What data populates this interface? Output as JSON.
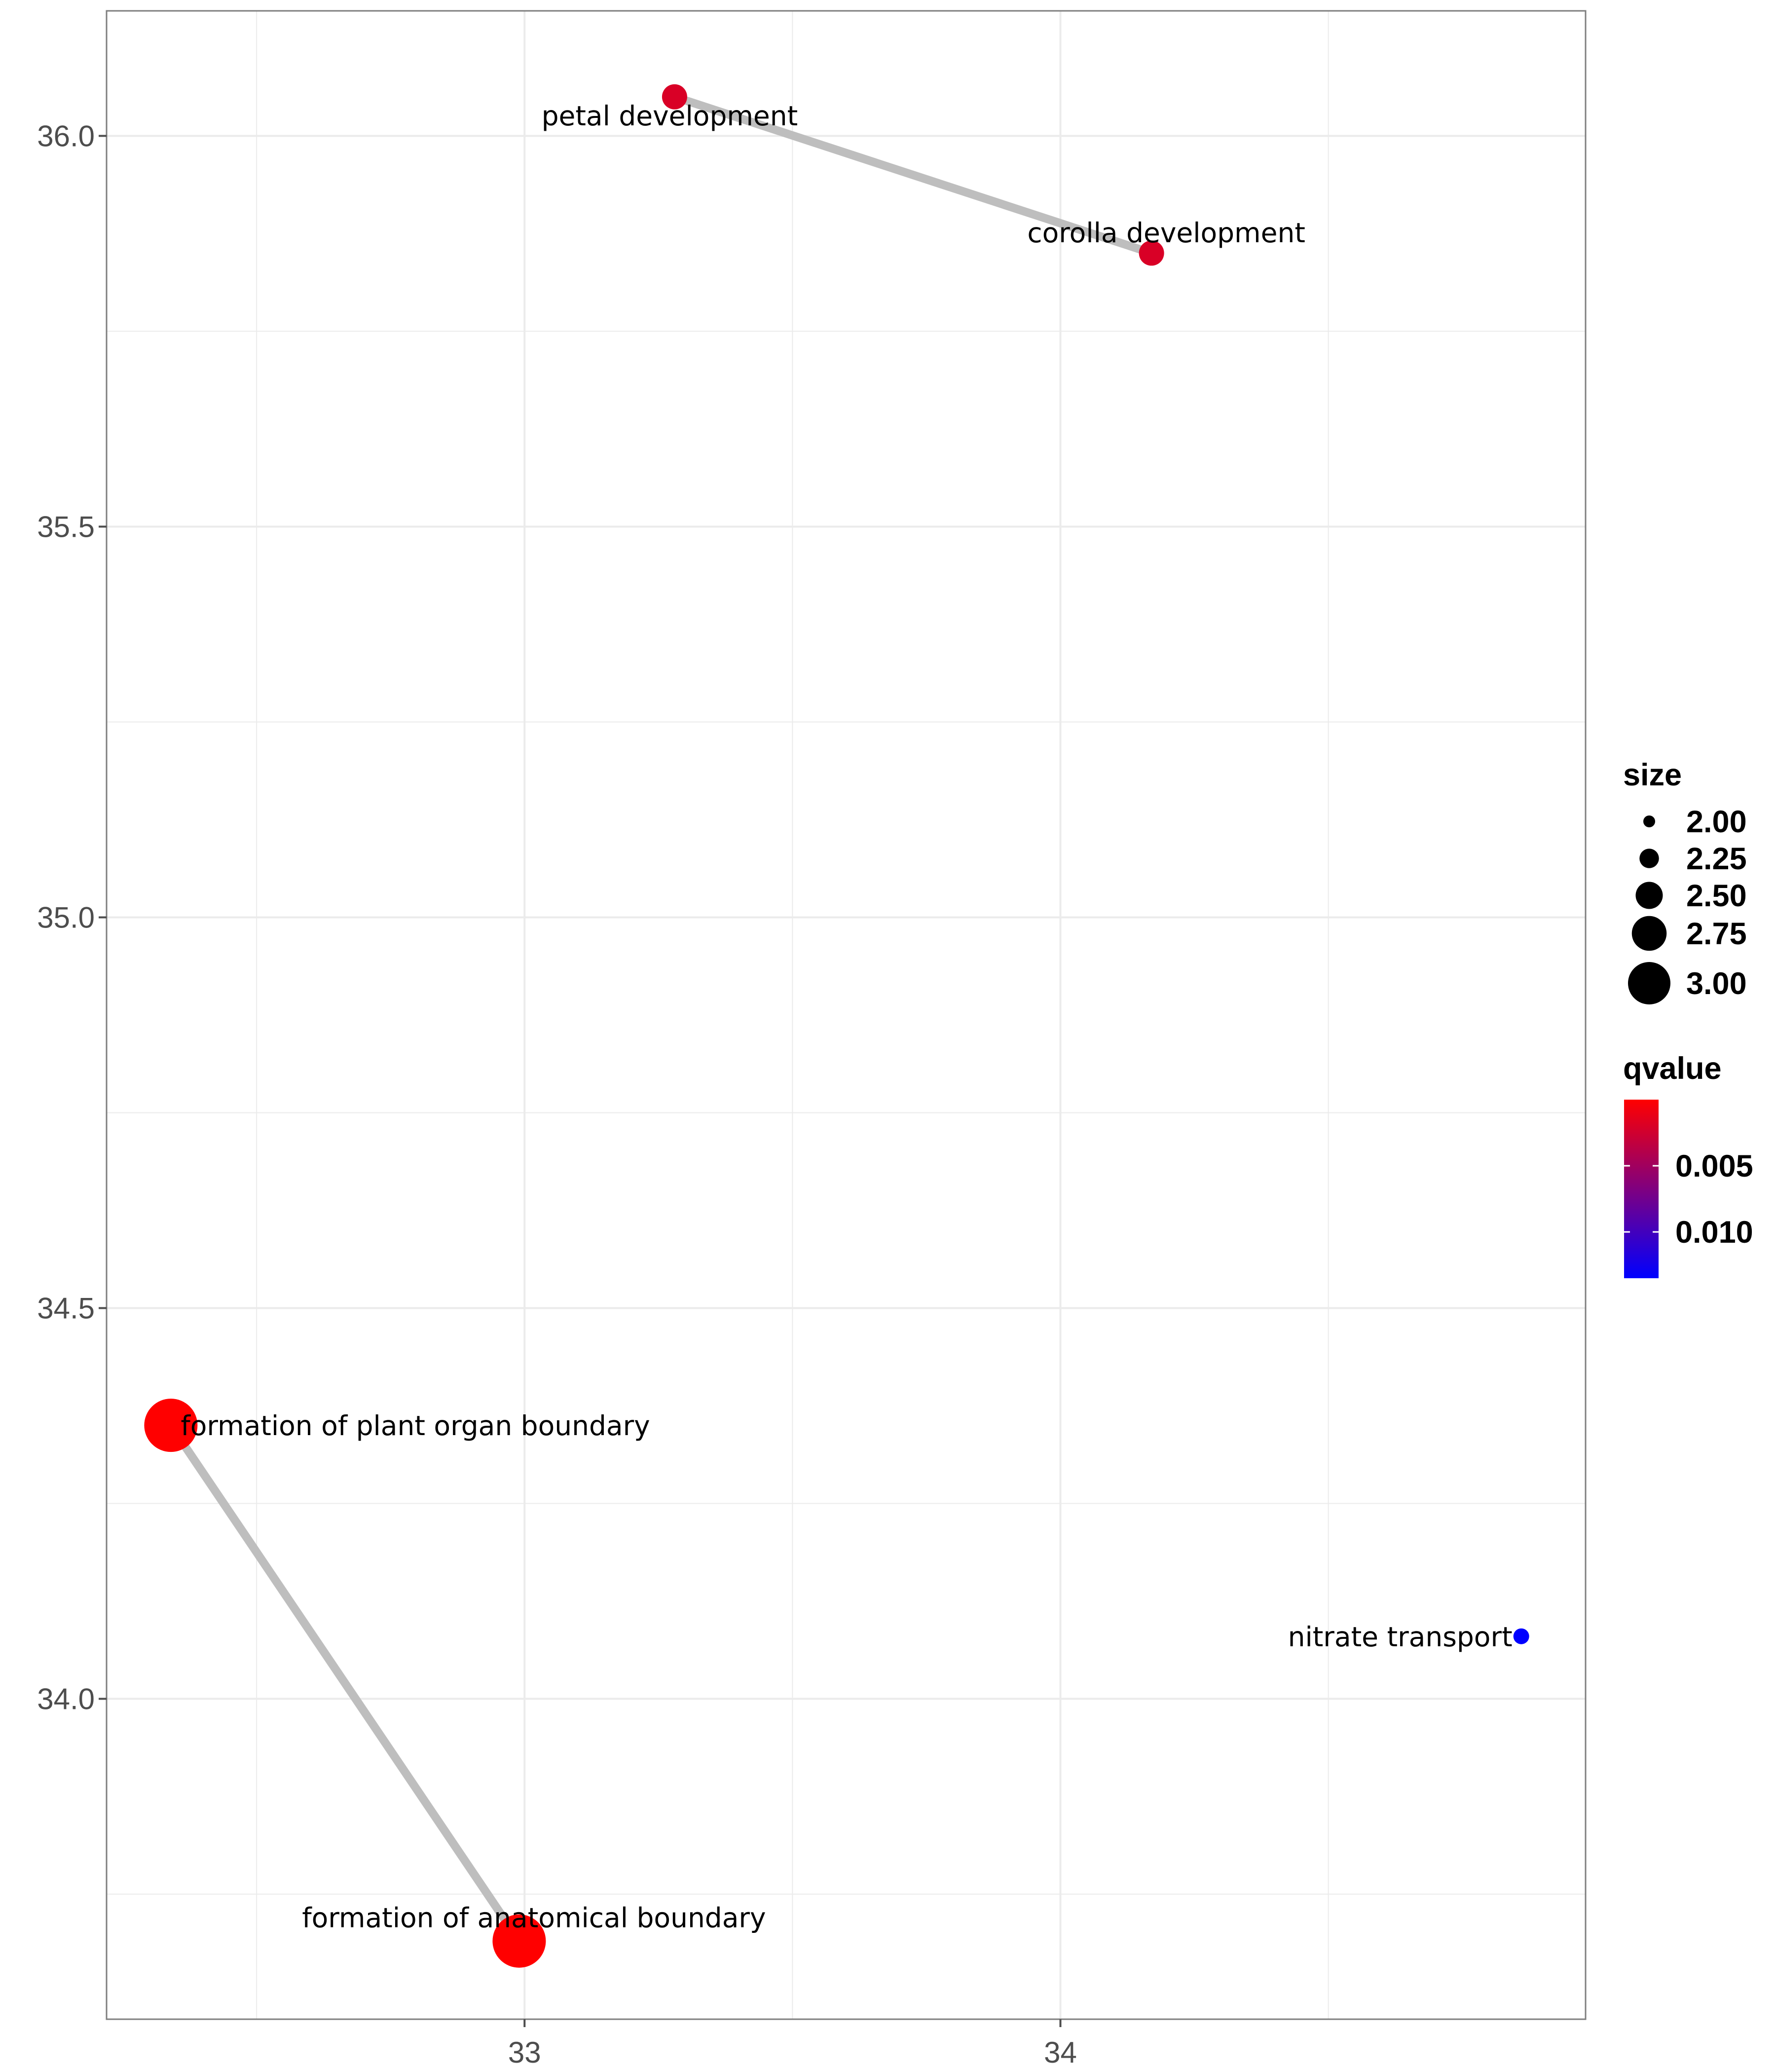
{
  "chart_data": {
    "type": "scatter",
    "title": "",
    "xlabel": "",
    "ylabel": "",
    "xlim": [
      32.22,
      34.98
    ],
    "ylim": [
      33.59,
      36.16
    ],
    "x_ticks": [
      33,
      34
    ],
    "x_tick_labels": [
      "33",
      "34"
    ],
    "y_ticks": [
      34.0,
      34.5,
      35.0,
      35.5,
      36.0
    ],
    "y_tick_labels": [
      "34.0",
      "34.5",
      "35.0",
      "35.5",
      "36.0"
    ],
    "grid": true,
    "legend_position": "right",
    "points": [
      {
        "label": "petal development",
        "x": 33.28,
        "y": 36.05,
        "size": 2.25,
        "qvalue": 0.002
      },
      {
        "label": "corolla development",
        "x": 34.17,
        "y": 35.85,
        "size": 2.25,
        "qvalue": 0.002
      },
      {
        "label": "formation of plant organ boundary",
        "x": 32.34,
        "y": 34.35,
        "size": 3.0,
        "qvalue": 0.0
      },
      {
        "label": "formation of anatomical boundary",
        "x": 32.99,
        "y": 33.69,
        "size": 3.0,
        "qvalue": 0.0
      },
      {
        "label": "nitrate transport",
        "x": 34.86,
        "y": 34.08,
        "size": 2.0,
        "qvalue": 0.0135
      }
    ],
    "edges": [
      {
        "from": "petal development",
        "to": "corolla development"
      },
      {
        "from": "formation of plant organ boundary",
        "to": "formation of anatomical boundary"
      }
    ],
    "legend_size": {
      "title": "size",
      "entries": [
        {
          "label": "2.00",
          "value": 2.0
        },
        {
          "label": "2.25",
          "value": 2.25
        },
        {
          "label": "2.50",
          "value": 2.5
        },
        {
          "label": "2.75",
          "value": 2.75
        },
        {
          "label": "3.00",
          "value": 3.0
        }
      ]
    },
    "legend_color": {
      "title": "qvalue",
      "low_color": "#ff0000",
      "high_color": "#0000ff",
      "min": 0.0,
      "max": 0.0135,
      "ticks": [
        {
          "label": "0.005",
          "value": 0.005
        },
        {
          "label": "0.010",
          "value": 0.01
        }
      ]
    },
    "colors": {
      "edge": "#bebebe",
      "grid": "#ebebeb",
      "panel_border": "#7f7f7f"
    }
  }
}
